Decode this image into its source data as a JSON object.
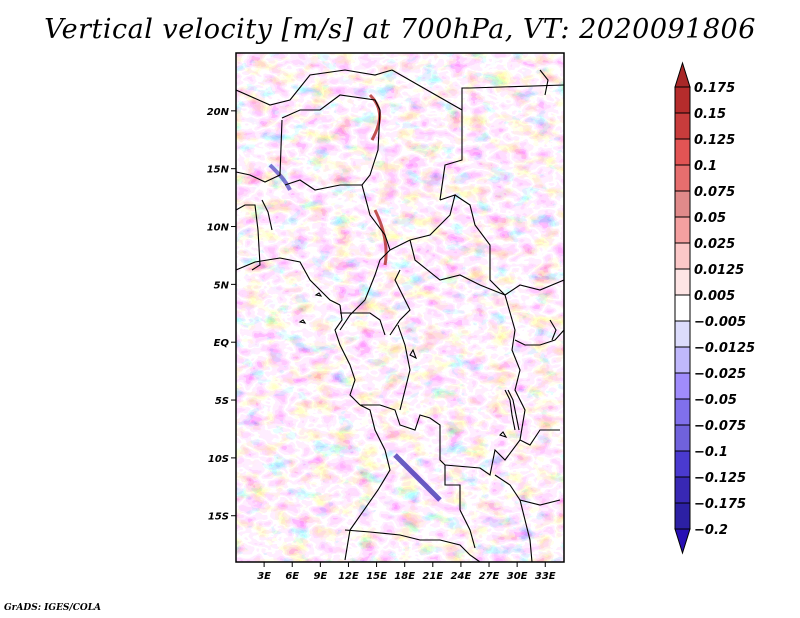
{
  "title": "Vertical velocity [m/s] at 700hPa, VT: 2020091806",
  "footer": "GrADS: IGES/COLA",
  "chart_data": {
    "type": "heatmap",
    "title": "Vertical velocity [m/s] at 700hPa, VT: 2020091806",
    "variable": "Vertical velocity",
    "units": "m/s",
    "level": "700hPa",
    "valid_time": "2020091806",
    "projection": "lat-lon",
    "lon_range": [
      0,
      35
    ],
    "lat_range": [
      -19,
      25
    ],
    "x_ticks": [
      {
        "value": 3,
        "label": "3E"
      },
      {
        "value": 6,
        "label": "6E"
      },
      {
        "value": 9,
        "label": "9E"
      },
      {
        "value": 12,
        "label": "12E"
      },
      {
        "value": 15,
        "label": "15E"
      },
      {
        "value": 18,
        "label": "18E"
      },
      {
        "value": 21,
        "label": "21E"
      },
      {
        "value": 24,
        "label": "24E"
      },
      {
        "value": 27,
        "label": "27E"
      },
      {
        "value": 30,
        "label": "30E"
      },
      {
        "value": 33,
        "label": "33E"
      }
    ],
    "y_ticks": [
      {
        "value": 20,
        "label": "20N"
      },
      {
        "value": 15,
        "label": "15N"
      },
      {
        "value": 10,
        "label": "10N"
      },
      {
        "value": 5,
        "label": "5N"
      },
      {
        "value": 0,
        "label": "EQ"
      },
      {
        "value": -5,
        "label": "5S"
      },
      {
        "value": -10,
        "label": "10S"
      },
      {
        "value": -15,
        "label": "15S"
      }
    ],
    "colorbar": {
      "orientation": "vertical",
      "placement": "right",
      "extend": "both",
      "levels": [
        0.175,
        0.15,
        0.125,
        0.1,
        0.075,
        0.05,
        0.025,
        0.0125,
        0.005,
        -0.005,
        -0.0125,
        -0.025,
        -0.05,
        -0.075,
        -0.1,
        -0.125,
        -0.175,
        -0.2
      ],
      "labels": [
        "0.175",
        "0.15",
        "0.125",
        "0.1",
        "0.075",
        "0.05",
        "0.025",
        "0.0125",
        "0.005",
        "−0.005",
        "−0.0125",
        "−0.025",
        "−0.05",
        "−0.075",
        "−0.1",
        "−0.125",
        "−0.175",
        "−0.2"
      ],
      "colors_top_to_bottom": [
        "#a82828",
        "#b52c2c",
        "#c83c3c",
        "#e25454",
        "#e66e6e",
        "#e08a8a",
        "#f4a0a0",
        "#fbc8c8",
        "#fde4e4",
        "#ffffff",
        "#dcdcfc",
        "#c0b8fc",
        "#a08cfc",
        "#8070ec",
        "#7062dc",
        "#4a3ad0",
        "#3828b4",
        "#2c20a4",
        "#2810b4"
      ]
    },
    "description": "Filled shaded field of 700hPa vertical velocity over Central Africa with country borders and coastlines; mixed positive (red) and negative (blue) small-scale patterns, strong blue band over Angola/Zambia and red streaks over Chad/Sudan."
  }
}
